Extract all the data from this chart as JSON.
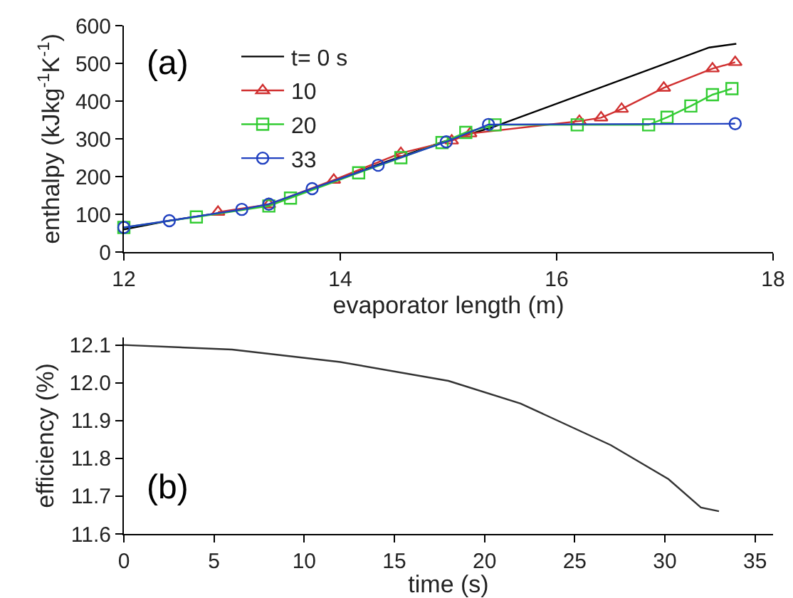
{
  "chart_data": [
    {
      "type": "line",
      "xlabel": "evaporator length (m)",
      "ylabel": "enthalpy (kJkg$^{-1}$K$^{-1}$)",
      "annotations": [
        "(a)"
      ],
      "xlim": [
        12,
        18
      ],
      "xticks": [
        12,
        14,
        16,
        18
      ],
      "ylim": [
        0,
        600
      ],
      "yticks": [
        0,
        100,
        200,
        300,
        400,
        500,
        600
      ],
      "grid": false,
      "legend": "top left",
      "line_style": "solid",
      "series": [
        {
          "name": "t= 0 s",
          "color": "#000000",
          "marker": "none",
          "x": [
            12,
            12.4,
            13.1,
            13.35,
            13.75,
            14.35,
            14.95,
            15.4,
            17.41,
            17.66
          ],
          "values": [
            60,
            82,
            113,
            125,
            168,
            232,
            292,
            330,
            542,
            552
          ]
        },
        {
          "name": "10",
          "color": "#d03030",
          "marker": "triangle",
          "x": [
            12.87,
            13.34,
            13.94,
            14.56,
            15.03,
            15.2,
            16.21,
            16.41,
            16.6,
            16.99,
            17.44,
            17.65
          ],
          "values": [
            106,
            126,
            191,
            262,
            295,
            314,
            347,
            356,
            379,
            435,
            486,
            503
          ]
        },
        {
          "name": "20",
          "color": "#33cc33",
          "marker": "square",
          "x": [
            12,
            12.67,
            13.34,
            13.54,
            14.17,
            14.56,
            14.94,
            15.16,
            15.43,
            16.19,
            16.85,
            17.02,
            17.24,
            17.44,
            17.62
          ],
          "values": [
            65,
            93,
            122,
            143,
            210,
            250,
            290,
            317,
            337,
            337,
            337,
            357,
            387,
            417,
            433
          ]
        },
        {
          "name": "33",
          "color": "#2040c0",
          "marker": "circle",
          "x": [
            12,
            12.42,
            13.09,
            13.34,
            13.74,
            14.35,
            14.98,
            15.37,
            17.65
          ],
          "values": [
            65,
            83,
            113,
            127,
            168,
            230,
            292,
            338,
            340
          ]
        }
      ]
    },
    {
      "type": "line",
      "xlabel": "time (s)",
      "ylabel": "efficiency (%)",
      "annotations": [
        "(b)"
      ],
      "xlim": [
        0,
        36
      ],
      "xticks": [
        0,
        5,
        10,
        15,
        20,
        25,
        30,
        35
      ],
      "ylim": [
        11.6,
        12.12
      ],
      "yticks": [
        11.6,
        11.7,
        11.8,
        11.9,
        {
          "value": 12,
          "label": "12.0"
        },
        12.1
      ],
      "grid": false,
      "legend": false,
      "line_style": "solid",
      "series": [
        {
          "color": "#333333",
          "marker": "none",
          "x": [
            0,
            6,
            12,
            18,
            22,
            27,
            30.2,
            32,
            33
          ],
          "values": [
            12.1,
            12.088,
            12.055,
            12.005,
            11.945,
            11.835,
            11.745,
            11.67,
            11.66
          ]
        }
      ]
    }
  ]
}
